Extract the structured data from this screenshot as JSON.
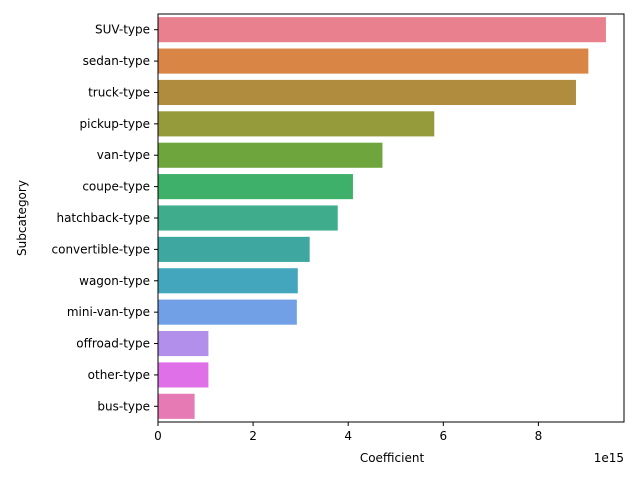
{
  "chart_data": {
    "type": "bar",
    "orientation": "horizontal",
    "title": "",
    "xlabel": "Coefficient",
    "ylabel": "Subcategory",
    "x_offset_label": "1e15",
    "x_scale_factor": 1000000000000000.0,
    "xlim": [
      0,
      9.8
    ],
    "xticks": [
      0,
      2,
      4,
      6,
      8
    ],
    "grid": false,
    "categories": [
      "SUV-type",
      "sedan-type",
      "truck-type",
      "pickup-type",
      "van-type",
      "coupe-type",
      "hatchback-type",
      "convertible-type",
      "wagon-type",
      "mini-van-type",
      "offroad-type",
      "other-type",
      "bus-type"
    ],
    "values": [
      9.42,
      9.05,
      8.79,
      5.81,
      4.72,
      4.1,
      3.78,
      3.19,
      2.94,
      2.92,
      1.06,
      1.06,
      0.77
    ],
    "colors": [
      "#e8808e",
      "#d98545",
      "#b08c3e",
      "#959a3b",
      "#6ea53c",
      "#3fb06a",
      "#3fac8c",
      "#3ea8a0",
      "#43a6bc",
      "#71a0e6",
      "#b18feb",
      "#e070e8",
      "#e57ab5"
    ]
  }
}
